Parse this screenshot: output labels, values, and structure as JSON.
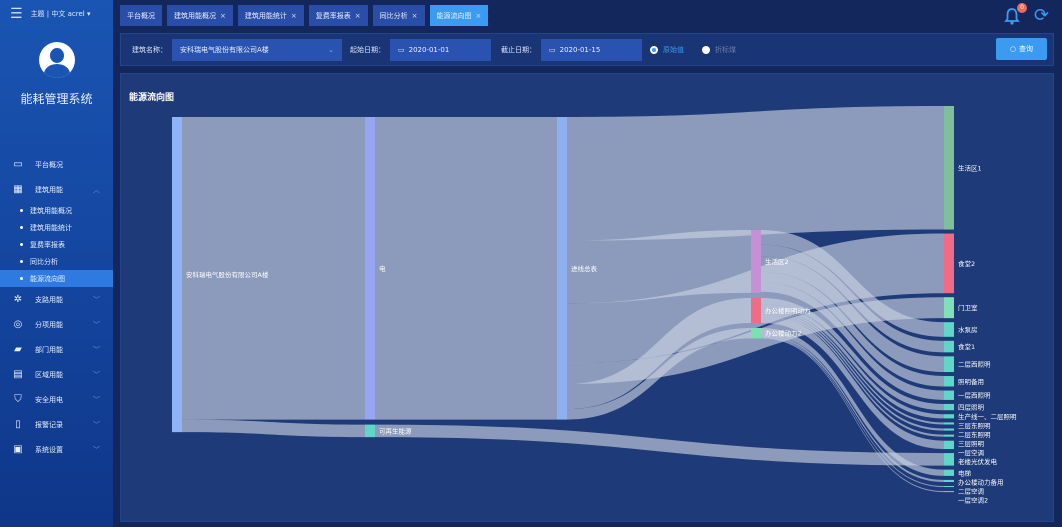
{
  "topbar": {
    "theme": "主题",
    "lang": "中文",
    "user": "acrel",
    "notifications": "0"
  },
  "sidebar": {
    "system_name": "能耗管理系统",
    "items": [
      {
        "label": "平台概况",
        "icon": "monitor-icon"
      },
      {
        "label": "建筑用能",
        "icon": "building-icon",
        "expanded": true,
        "children": [
          "建筑用能概况",
          "建筑用能统计",
          "复费率报表",
          "同比分析",
          "能源流向图"
        ]
      },
      {
        "label": "支路用能",
        "icon": "branch-icon"
      },
      {
        "label": "分项用能",
        "icon": "target-icon"
      },
      {
        "label": "部门用能",
        "icon": "folder-icon"
      },
      {
        "label": "区域用能",
        "icon": "region-icon"
      },
      {
        "label": "安全用电",
        "icon": "shield-icon"
      },
      {
        "label": "报警记录",
        "icon": "report-icon"
      },
      {
        "label": "系统设置",
        "icon": "settings-icon"
      }
    ],
    "active_child": "能源流向图"
  },
  "tabs": [
    {
      "label": "平台概况",
      "closable": false
    },
    {
      "label": "建筑用能概况",
      "closable": true
    },
    {
      "label": "建筑用能统计",
      "closable": true
    },
    {
      "label": "复费率报表",
      "closable": true
    },
    {
      "label": "同比分析",
      "closable": true
    },
    {
      "label": "能源流向图",
      "closable": true,
      "active": true
    }
  ],
  "filter": {
    "building_label": "建筑名称：",
    "building_value": "安科瑞电气股份有限公司A楼",
    "start_label": "起始日期：",
    "start_value": "2020-01-01",
    "end_label": "截止日期：",
    "end_value": "2020-01-15",
    "radio1": "原始值",
    "radio2": "折标煤",
    "radio_selected": "原始值",
    "query": "查询"
  },
  "panel": {
    "title": "能源流向图"
  },
  "chart_data": {
    "type": "sankey",
    "nodes": [
      {
        "name": "安科瑞电气股份有限公司A楼",
        "col": 0,
        "color": "#8fb4f5"
      },
      {
        "name": "电",
        "col": 1,
        "color": "#98a6f2"
      },
      {
        "name": "可再生能源",
        "col": 1,
        "color": "#5fd6c8"
      },
      {
        "name": "进线总表",
        "col": 2,
        "color": "#8fb0f0"
      },
      {
        "name": "生活区2",
        "col": 3,
        "color": "#c590d6"
      },
      {
        "name": "办公楼照明动力",
        "col": 3,
        "color": "#f06b85"
      },
      {
        "name": "办公楼动力2",
        "col": 3,
        "color": "#7ee0b0"
      },
      {
        "name": "生活区1",
        "col": 4,
        "color": "#7fbf9a"
      },
      {
        "name": "食堂2",
        "col": 4,
        "color": "#f06b85"
      },
      {
        "name": "门卫室",
        "col": 4,
        "color": "#80e0b8"
      },
      {
        "name": "水泵房",
        "col": 4,
        "color": "#5fd6c8"
      },
      {
        "name": "食堂1",
        "col": 4,
        "color": "#5fd6c8"
      },
      {
        "name": "二层西照明",
        "col": 4,
        "color": "#5fd6c8"
      },
      {
        "name": "照明备用",
        "col": 4,
        "color": "#5fd6c8"
      },
      {
        "name": "一层西照明",
        "col": 4,
        "color": "#5fd6c8"
      },
      {
        "name": "四层照明",
        "col": 4,
        "color": "#5fd6c8"
      },
      {
        "name": "生产线一、二层照明",
        "col": 4,
        "color": "#5fd6c8"
      },
      {
        "name": "三层东照明",
        "col": 4,
        "color": "#5fd6c8"
      },
      {
        "name": "二层东照明",
        "col": 4,
        "color": "#5fd6c8"
      },
      {
        "name": "三层照明",
        "col": 4,
        "color": "#5fd6c8"
      },
      {
        "name": "一层空调",
        "col": 4,
        "color": "#5fd6c8"
      },
      {
        "name": "老楼光伏发电",
        "col": 4,
        "color": "#5fd6c8"
      },
      {
        "name": "电梯",
        "col": 4,
        "color": "#5fd6c8"
      },
      {
        "name": "办公楼动力备用",
        "col": 4,
        "color": "#5fd6c8"
      },
      {
        "name": "二层空调",
        "col": 4,
        "color": "#5fd6c8"
      },
      {
        "name": "一层空调2",
        "col": 4,
        "color": "#5fd6c8"
      }
    ],
    "links": [
      {
        "source": "安科瑞电气股份有限公司A楼",
        "target": "电",
        "value": 289
      },
      {
        "source": "安科瑞电气股份有限公司A楼",
        "target": "可再生能源",
        "value": 12
      },
      {
        "source": "电",
        "target": "进线总表",
        "value": 289
      },
      {
        "source": "可再生能源",
        "target": "老楼光伏发电",
        "value": 12
      },
      {
        "source": "进线总表",
        "target": "生活区1",
        "value": 118
      },
      {
        "source": "进线总表",
        "target": "食堂2",
        "value": 57
      },
      {
        "source": "进线总表",
        "target": "生活区2",
        "value": 60
      },
      {
        "source": "进线总表",
        "target": "门卫室",
        "value": 20
      },
      {
        "source": "进线总表",
        "target": "办公楼照明动力",
        "value": 24
      },
      {
        "source": "进线总表",
        "target": "办公楼动力2",
        "value": 10
      },
      {
        "source": "生活区2",
        "target": "水泵房",
        "value": 14
      },
      {
        "source": "生活区2",
        "target": "食堂1",
        "value": 11
      },
      {
        "source": "生活区2",
        "target": "二层西照明",
        "value": 15
      },
      {
        "source": "生活区2",
        "target": "照明备用",
        "value": 10
      },
      {
        "source": "生活区2",
        "target": "一层西照明",
        "value": 9
      },
      {
        "source": "办公楼照明动力",
        "target": "四层照明",
        "value": 6
      },
      {
        "source": "办公楼照明动力",
        "target": "生产线一、二层照明",
        "value": 4
      },
      {
        "source": "办公楼照明动力",
        "target": "三层东照明",
        "value": 2
      },
      {
        "source": "办公楼照明动力",
        "target": "二层东照明",
        "value": 2
      },
      {
        "source": "办公楼照明动力",
        "target": "三层照明",
        "value": 2
      },
      {
        "source": "办公楼照明动力",
        "target": "一层空调",
        "value": 8
      },
      {
        "source": "办公楼动力2",
        "target": "电梯",
        "value": 6
      },
      {
        "source": "办公楼动力2",
        "target": "办公楼动力备用",
        "value": 2
      },
      {
        "source": "办公楼动力2",
        "target": "二层空调",
        "value": 1
      },
      {
        "source": "办公楼动力2",
        "target": "一层空调2",
        "value": 1
      }
    ]
  }
}
